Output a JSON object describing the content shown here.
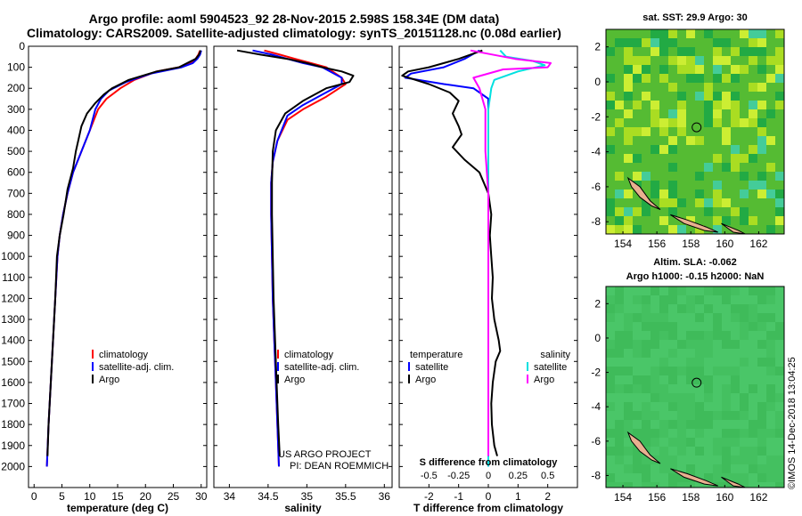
{
  "header": {
    "line1": "Argo profile: aoml 5904523_92 28-Nov-2015 2.598S 158.34E (DM data)",
    "line2": "Climatology: CARS2009. Satellite-adjusted climatology: synTS_20151128.nc (0.08d earlier)"
  },
  "colors": {
    "climatology": "#ff0000",
    "satellite": "#0000ff",
    "argo": "#000000",
    "sal_satellite": "#00e0e0",
    "sal_argo": "#ff00ff",
    "sst_green": "#33bb33",
    "land": "#e8b090"
  },
  "chart_data": [
    {
      "id": "temperature",
      "type": "line",
      "xlabel": "temperature (deg C)",
      "ylabel": "",
      "xlim": [
        -1,
        31
      ],
      "ylim": [
        2100,
        0
      ],
      "xticks": [
        "0",
        "5",
        "10",
        "15",
        "20",
        "25",
        "30"
      ],
      "xtick_values": [
        0,
        5,
        10,
        15,
        20,
        25,
        30
      ],
      "yticks": [
        "0",
        "100",
        "200",
        "300",
        "400",
        "500",
        "600",
        "700",
        "800",
        "900",
        "1000",
        "1100",
        "1200",
        "1300",
        "1400",
        "1500",
        "1600",
        "1700",
        "1800",
        "1900",
        "2000"
      ],
      "ytick_values": [
        0,
        100,
        200,
        300,
        400,
        500,
        600,
        700,
        800,
        900,
        1000,
        1100,
        1200,
        1300,
        1400,
        1500,
        1600,
        1700,
        1800,
        1900,
        2000
      ],
      "legend": [
        "climatology",
        "satellite-adj. clim.",
        "Argo"
      ],
      "series": [
        {
          "name": "climatology",
          "color": "#ff0000",
          "points": [
            [
              29.8,
              20
            ],
            [
              29.5,
              40
            ],
            [
              29.0,
              60
            ],
            [
              28.0,
              80
            ],
            [
              26.0,
              100
            ],
            [
              22.0,
              120
            ],
            [
              18.0,
              160
            ],
            [
              15.5,
              200
            ],
            [
              13.0,
              250
            ],
            [
              11.5,
              300
            ],
            [
              10.0,
              400
            ],
            [
              8.5,
              500
            ],
            [
              7.0,
              600
            ],
            [
              6.0,
              700
            ],
            [
              5.2,
              800
            ],
            [
              4.6,
              900
            ],
            [
              4.2,
              1000
            ],
            [
              3.8,
              1200
            ],
            [
              3.4,
              1400
            ],
            [
              3.0,
              1600
            ],
            [
              2.6,
              1800
            ],
            [
              2.3,
              2000
            ]
          ]
        },
        {
          "name": "satellite-adj. clim.",
          "color": "#0000ff",
          "points": [
            [
              30.0,
              20
            ],
            [
              29.8,
              40
            ],
            [
              29.3,
              60
            ],
            [
              28.5,
              80
            ],
            [
              26.5,
              100
            ],
            [
              21.0,
              130
            ],
            [
              16.5,
              170
            ],
            [
              13.5,
              210
            ],
            [
              12.0,
              250
            ],
            [
              11.0,
              300
            ],
            [
              10.0,
              400
            ],
            [
              8.5,
              500
            ],
            [
              7.0,
              600
            ],
            [
              6.0,
              700
            ],
            [
              5.2,
              800
            ],
            [
              4.6,
              900
            ],
            [
              4.2,
              1000
            ],
            [
              3.8,
              1200
            ],
            [
              3.4,
              1400
            ],
            [
              3.0,
              1600
            ],
            [
              2.6,
              1800
            ],
            [
              2.3,
              2000
            ]
          ]
        },
        {
          "name": "Argo",
          "color": "#000000",
          "points": [
            [
              29.9,
              20
            ],
            [
              29.6,
              40
            ],
            [
              29.0,
              60
            ],
            [
              27.5,
              80
            ],
            [
              26.0,
              100
            ],
            [
              22.0,
              120
            ],
            [
              17.0,
              160
            ],
            [
              14.0,
              200
            ],
            [
              12.5,
              230
            ],
            [
              11.0,
              270
            ],
            [
              9.5,
              320
            ],
            [
              8.5,
              380
            ],
            [
              8.0,
              440
            ],
            [
              7.5,
              500
            ],
            [
              7.0,
              580
            ],
            [
              6.0,
              680
            ],
            [
              5.3,
              800
            ],
            [
              4.6,
              900
            ],
            [
              4.1,
              1000
            ],
            [
              3.8,
              1200
            ],
            [
              3.4,
              1400
            ],
            [
              3.0,
              1600
            ],
            [
              2.6,
              1800
            ],
            [
              2.4,
              1950
            ]
          ]
        }
      ]
    },
    {
      "id": "salinity",
      "type": "line",
      "xlabel": "salinity",
      "xlim": [
        33.8,
        36.1
      ],
      "ylim": [
        2100,
        0
      ],
      "xticks": [
        "34",
        "34.5",
        "35",
        "35.5",
        "36"
      ],
      "xtick_values": [
        34,
        34.5,
        35,
        35.5,
        36
      ],
      "legend": [
        "climatology",
        "satellite-adj. clim.",
        "Argo"
      ],
      "annotation": [
        "US ARGO PROJECT",
        "PI: DEAN ROEMMICH"
      ],
      "series": [
        {
          "name": "climatology",
          "color": "#ff0000",
          "points": [
            [
              34.45,
              20
            ],
            [
              34.65,
              40
            ],
            [
              34.85,
              60
            ],
            [
              35.05,
              80
            ],
            [
              35.25,
              100
            ],
            [
              35.45,
              150
            ],
            [
              35.5,
              180
            ],
            [
              35.25,
              240
            ],
            [
              34.95,
              300
            ],
            [
              34.75,
              350
            ],
            [
              34.62,
              450
            ],
            [
              34.56,
              550
            ],
            [
              34.54,
              650
            ],
            [
              34.54,
              800
            ],
            [
              34.55,
              1000
            ],
            [
              34.56,
              1200
            ],
            [
              34.58,
              1400
            ],
            [
              34.6,
              1600
            ],
            [
              34.62,
              1800
            ],
            [
              34.64,
              2000
            ]
          ]
        },
        {
          "name": "satellite-adj. clim.",
          "color": "#0000ff",
          "points": [
            [
              34.3,
              20
            ],
            [
              34.55,
              40
            ],
            [
              34.75,
              60
            ],
            [
              34.95,
              80
            ],
            [
              35.2,
              100
            ],
            [
              35.45,
              150
            ],
            [
              35.45,
              180
            ],
            [
              35.2,
              230
            ],
            [
              34.95,
              280
            ],
            [
              34.75,
              330
            ],
            [
              34.62,
              450
            ],
            [
              34.56,
              550
            ],
            [
              34.54,
              650
            ],
            [
              34.54,
              800
            ],
            [
              34.55,
              1000
            ],
            [
              34.56,
              1200
            ],
            [
              34.58,
              1400
            ],
            [
              34.6,
              1600
            ],
            [
              34.62,
              1800
            ],
            [
              34.64,
              2000
            ]
          ]
        },
        {
          "name": "Argo",
          "color": "#000000",
          "points": [
            [
              34.1,
              20
            ],
            [
              34.4,
              40
            ],
            [
              34.75,
              60
            ],
            [
              35.0,
              80
            ],
            [
              35.2,
              100
            ],
            [
              35.45,
              120
            ],
            [
              35.6,
              140
            ],
            [
              35.55,
              170
            ],
            [
              35.25,
              200
            ],
            [
              34.95,
              260
            ],
            [
              34.72,
              320
            ],
            [
              34.6,
              400
            ],
            [
              34.56,
              500
            ],
            [
              34.55,
              650
            ],
            [
              34.55,
              800
            ],
            [
              34.56,
              1000
            ],
            [
              34.57,
              1200
            ],
            [
              34.59,
              1400
            ],
            [
              34.61,
              1600
            ],
            [
              34.63,
              1800
            ],
            [
              34.65,
              1950
            ]
          ]
        }
      ]
    },
    {
      "id": "differences",
      "type": "line",
      "xlabel": "T difference from climatology",
      "xlabel_top": "S difference from climatology",
      "xlim": [
        -3,
        3
      ],
      "ylim": [
        2100,
        0
      ],
      "xticks": [
        "-2",
        "-1",
        "0",
        "1",
        "2"
      ],
      "xtick_values": [
        -2,
        -1,
        0,
        1,
        2
      ],
      "top_ticks": [
        "-0.5",
        "-0.25",
        "0",
        "0.25",
        "0.5"
      ],
      "top_tick_values": [
        -0.5,
        -0.25,
        0,
        0.25,
        0.5
      ],
      "legend_left_title": "temperature",
      "legend_right_title": "salinity",
      "legend": [
        "satellite",
        "Argo",
        "satellite",
        "Argo"
      ],
      "series": [
        {
          "name": "T satellite",
          "color": "#0000ff",
          "points": [
            [
              -0.3,
              20
            ],
            [
              -0.8,
              60
            ],
            [
              -1.5,
              100
            ],
            [
              -2.6,
              130
            ],
            [
              -2.8,
              150
            ],
            [
              -1.5,
              180
            ],
            [
              -0.5,
              200
            ],
            [
              0.0,
              250
            ],
            [
              0.0,
              400
            ],
            [
              0.0,
              2000
            ]
          ]
        },
        {
          "name": "T Argo",
          "color": "#000000",
          "points": [
            [
              -0.2,
              20
            ],
            [
              -1.0,
              60
            ],
            [
              -2.0,
              100
            ],
            [
              -2.7,
              120
            ],
            [
              -2.9,
              140
            ],
            [
              -2.0,
              180
            ],
            [
              -1.3,
              220
            ],
            [
              -1.0,
              260
            ],
            [
              -1.2,
              320
            ],
            [
              -1.0,
              380
            ],
            [
              -0.9,
              420
            ],
            [
              -1.2,
              480
            ],
            [
              -0.8,
              540
            ],
            [
              -0.3,
              600
            ],
            [
              0.0,
              700
            ],
            [
              0.1,
              800
            ],
            [
              0.05,
              900
            ],
            [
              0.1,
              1000
            ],
            [
              0.15,
              1100
            ],
            [
              0.12,
              1200
            ],
            [
              0.2,
              1300
            ],
            [
              0.35,
              1400
            ],
            [
              0.4,
              1450
            ],
            [
              0.25,
              1500
            ],
            [
              0.15,
              1600
            ],
            [
              0.1,
              1700
            ],
            [
              0.12,
              1800
            ],
            [
              0.2,
              1900
            ],
            [
              0.3,
              1950
            ]
          ]
        },
        {
          "name": "S satellite",
          "color": "#00e0e0",
          "points": [
            [
              0.4,
              20
            ],
            [
              0.6,
              50
            ],
            [
              1.5,
              70
            ],
            [
              1.9,
              90
            ],
            [
              1.0,
              120
            ],
            [
              0.2,
              160
            ],
            [
              0.1,
              200
            ],
            [
              0.0,
              300
            ],
            [
              0.0,
              700
            ],
            [
              0.0,
              2000
            ]
          ]
        },
        {
          "name": "S Argo",
          "color": "#ff00ff",
          "points": [
            [
              -0.6,
              20
            ],
            [
              0.9,
              60
            ],
            [
              2.1,
              80
            ],
            [
              2.0,
              100
            ],
            [
              0.5,
              110
            ],
            [
              -0.5,
              150
            ],
            [
              -0.3,
              200
            ],
            [
              -0.1,
              300
            ],
            [
              -0.1,
              500
            ],
            [
              0.0,
              700
            ],
            [
              0.0,
              900
            ],
            [
              0.0,
              1100
            ],
            [
              0.0,
              1300
            ],
            [
              0.0,
              1500
            ],
            [
              0.0,
              1700
            ],
            [
              0.0,
              1950
            ]
          ]
        }
      ]
    }
  ],
  "maps": {
    "sst": {
      "title": "sat. SST: 29.9 Argo: 30",
      "xticks": [
        "154",
        "156",
        "158",
        "160",
        "162"
      ],
      "xtick_values": [
        154,
        156,
        158,
        160,
        162
      ],
      "yticks": [
        "2",
        "0",
        "-2",
        "-4",
        "-6",
        "-8"
      ],
      "ytick_values": [
        2,
        0,
        -2,
        -4,
        -6,
        -8
      ],
      "lon_range": [
        153.0,
        163.5
      ],
      "lat_range": [
        -8.7,
        3.0
      ],
      "marker": {
        "lon": 158.34,
        "lat": -2.6
      }
    },
    "sla": {
      "title_line1": "Altim. SLA: -0.062",
      "title_line2": "Argo h1000: -0.15 h2000: NaN",
      "xticks": [
        "154",
        "156",
        "158",
        "160",
        "162"
      ],
      "xtick_values": [
        154,
        156,
        158,
        160,
        162
      ],
      "yticks": [
        "2",
        "0",
        "-2",
        "-4",
        "-6",
        "-8"
      ],
      "ytick_values": [
        2,
        0,
        -2,
        -4,
        -6,
        -8
      ],
      "lon_range": [
        153.0,
        163.5
      ],
      "lat_range": [
        -8.7,
        3.0
      ],
      "marker": {
        "lon": 158.34,
        "lat": -2.6
      }
    }
  },
  "footer": {
    "stamp": "©IMOS 14-Dec-2018 13:04:25"
  }
}
